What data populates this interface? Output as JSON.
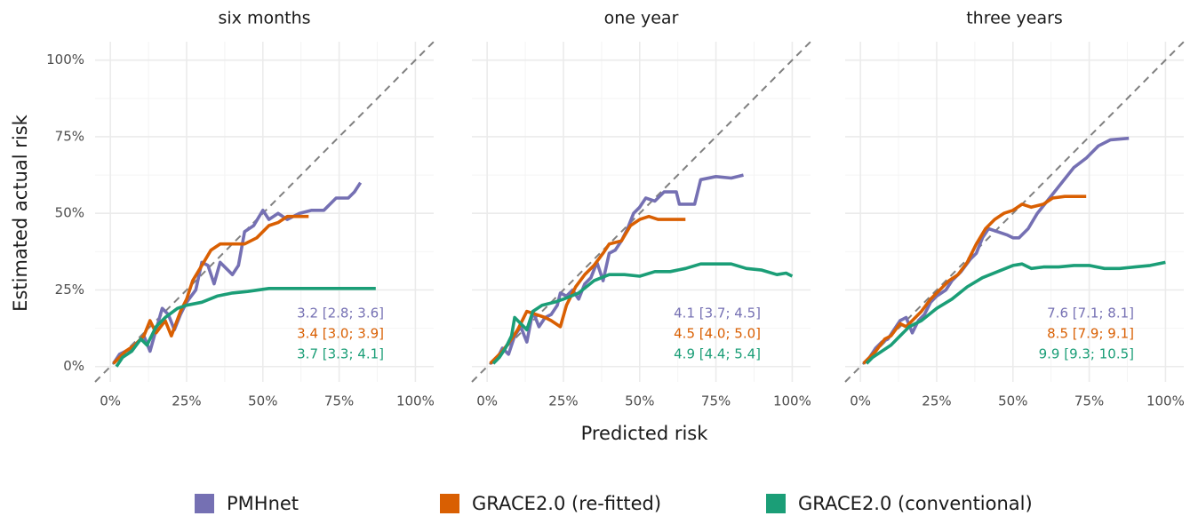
{
  "xlabel": "Predicted risk",
  "ylabel": "Estimated actual risk",
  "chart_data": [
    {
      "type": "line",
      "title": "six months",
      "xlim": [
        -5,
        106
      ],
      "ylim": [
        -5,
        106
      ],
      "xticks": [
        {
          "value": 0,
          "label": "0%"
        },
        {
          "value": 25,
          "label": "25%"
        },
        {
          "value": 50,
          "label": "50%"
        },
        {
          "value": 75,
          "label": "75%"
        },
        {
          "value": 100,
          "label": "100%"
        }
      ],
      "yticks": [
        {
          "value": 0,
          "label": "0%"
        },
        {
          "value": 25,
          "label": "25%"
        },
        {
          "value": 50,
          "label": "50%"
        },
        {
          "value": 75,
          "label": "75%"
        },
        {
          "value": 100,
          "label": "100%"
        }
      ],
      "grid": true,
      "series": [
        {
          "name": "PMHnet",
          "color": "#7570b3",
          "annotation": "3.2 [2.8; 3.6]",
          "x": [
            1,
            3,
            5,
            7,
            9,
            11,
            13,
            15,
            17,
            19,
            21,
            23,
            25,
            28,
            30,
            32,
            34,
            36,
            38,
            40,
            42,
            44,
            47,
            50,
            52,
            55,
            58,
            62,
            66,
            70,
            74,
            78,
            80,
            82
          ],
          "values": [
            1,
            4,
            5,
            6,
            8,
            10,
            5,
            12,
            19,
            17,
            12,
            17,
            21,
            25,
            34,
            33,
            27,
            34,
            32,
            30,
            33,
            44,
            46,
            51,
            48,
            50,
            48,
            50,
            51,
            51,
            55,
            55,
            57,
            60
          ]
        },
        {
          "name": "GRACE2.0 (re-fitted)",
          "color": "#d95f02",
          "annotation": "3.4 [3.0; 3.9]",
          "x": [
            1,
            3,
            5,
            8,
            11,
            13,
            15,
            18,
            20,
            23,
            25,
            27,
            30,
            33,
            36,
            40,
            44,
            48,
            52,
            55,
            58,
            61,
            65
          ],
          "values": [
            1,
            3,
            5,
            7,
            10,
            15,
            11,
            15,
            10,
            18,
            22,
            28,
            33,
            38,
            40,
            40,
            40,
            42,
            46,
            47,
            49,
            49,
            49
          ]
        },
        {
          "name": "GRACE2.0 (conventional)",
          "color": "#1b9e77",
          "annotation": "3.7 [3.3; 4.1]",
          "x": [
            2,
            4,
            7,
            10,
            12,
            15,
            18,
            22,
            25,
            30,
            35,
            40,
            45,
            52,
            60,
            70,
            80,
            87
          ],
          "values": [
            0,
            3,
            5,
            9,
            7,
            13,
            16,
            19,
            20,
            21,
            23,
            24,
            24.5,
            25.5,
            25.5,
            25.5,
            25.5,
            25.5
          ]
        }
      ]
    },
    {
      "type": "line",
      "title": "one year",
      "xlim": [
        -5,
        106
      ],
      "ylim": [
        -5,
        106
      ],
      "xticks": [
        {
          "value": 0,
          "label": "0%"
        },
        {
          "value": 25,
          "label": "25%"
        },
        {
          "value": 50,
          "label": "50%"
        },
        {
          "value": 75,
          "label": "75%"
        },
        {
          "value": 100,
          "label": "100%"
        }
      ],
      "yticks": [
        0,
        25,
        50,
        75,
        100
      ],
      "grid": true,
      "series": [
        {
          "name": "PMHnet",
          "color": "#7570b3",
          "annotation": "4.1 [3.7; 4.5]",
          "x": [
            1,
            3,
            5,
            7,
            9,
            11,
            13,
            15,
            17,
            19,
            21,
            23,
            24,
            26,
            28,
            30,
            32,
            34,
            36,
            38,
            40,
            42,
            44,
            46,
            48,
            50,
            52,
            55,
            58,
            62,
            63,
            68,
            70,
            75,
            80,
            84
          ],
          "values": [
            1,
            2,
            6,
            4,
            10,
            13,
            8,
            18,
            13,
            16,
            17,
            20,
            24,
            23,
            25,
            22,
            27,
            29,
            34,
            28,
            37,
            38,
            41,
            45,
            50,
            52,
            55,
            54,
            57,
            57,
            53,
            53,
            61,
            62,
            61.5,
            62.5
          ]
        },
        {
          "name": "GRACE2.0 (re-fitted)",
          "color": "#d95f02",
          "annotation": "4.5 [4.0; 5.0]",
          "x": [
            1,
            3,
            5,
            8,
            10,
            13,
            16,
            19,
            21,
            24,
            26,
            29,
            32,
            35,
            38,
            40,
            44,
            47,
            50,
            53,
            56,
            60,
            65
          ],
          "values": [
            1,
            3,
            5,
            9,
            12,
            18,
            17,
            16,
            15,
            13,
            20,
            26,
            30,
            33,
            37,
            40,
            41,
            46,
            48,
            49,
            48,
            48,
            48
          ]
        },
        {
          "name": "GRACE2.0 (conventional)",
          "color": "#1b9e77",
          "annotation": "4.9 [4.4; 5.4]",
          "x": [
            2,
            4,
            6,
            8,
            9,
            11,
            13,
            15,
            18,
            22,
            25,
            30,
            35,
            40,
            45,
            50,
            55,
            60,
            65,
            70,
            80,
            85,
            90,
            95,
            98,
            100
          ],
          "values": [
            1,
            3,
            6,
            10,
            16,
            14,
            12,
            18,
            20,
            21,
            22,
            24,
            28,
            30,
            30,
            29.5,
            31,
            31,
            32,
            33.5,
            33.5,
            32,
            31.5,
            30,
            30.5,
            29.5
          ]
        }
      ]
    },
    {
      "type": "line",
      "title": "three years",
      "xlim": [
        -5,
        106
      ],
      "ylim": [
        -5,
        106
      ],
      "xticks": [
        {
          "value": 0,
          "label": "0%"
        },
        {
          "value": 25,
          "label": "25%"
        },
        {
          "value": 50,
          "label": "50%"
        },
        {
          "value": 75,
          "label": "75%"
        },
        {
          "value": 100,
          "label": "100%"
        }
      ],
      "yticks": [
        0,
        25,
        50,
        75,
        100
      ],
      "grid": true,
      "series": [
        {
          "name": "PMHnet",
          "color": "#7570b3",
          "annotation": "7.6 [7.1; 8.1]",
          "x": [
            1,
            3,
            5,
            7,
            9,
            11,
            13,
            15,
            17,
            19,
            21,
            23,
            25,
            28,
            30,
            33,
            36,
            38,
            40,
            42,
            45,
            48,
            50,
            52,
            55,
            58,
            62,
            66,
            70,
            74,
            78,
            82,
            88
          ],
          "values": [
            1,
            3,
            6,
            8,
            9,
            12,
            15,
            16,
            11,
            15,
            17,
            21,
            23,
            25,
            28,
            31,
            35,
            37,
            42,
            45,
            44,
            43,
            42,
            42,
            45,
            50,
            55,
            60,
            65,
            68,
            72,
            74,
            74.5
          ]
        },
        {
          "name": "GRACE2.0 (re-fitted)",
          "color": "#d95f02",
          "annotation": "8.5 [7.9; 9.1]",
          "x": [
            1,
            3,
            5,
            8,
            10,
            13,
            15,
            17,
            20,
            23,
            26,
            29,
            32,
            35,
            38,
            41,
            44,
            47,
            50,
            53,
            56,
            60,
            63,
            67,
            74
          ],
          "values": [
            1,
            3,
            5,
            9,
            10,
            14,
            13,
            15,
            18,
            22,
            25,
            28,
            30,
            34,
            40,
            45,
            48,
            50,
            51,
            53,
            52,
            53,
            55,
            55.5,
            55.5
          ]
        },
        {
          "name": "GRACE2.0 (conventional)",
          "color": "#1b9e77",
          "annotation": "9.9 [9.3; 10.5]",
          "x": [
            2,
            4,
            7,
            10,
            13,
            16,
            20,
            25,
            30,
            35,
            40,
            45,
            50,
            53,
            56,
            60,
            65,
            70,
            75,
            80,
            85,
            90,
            95,
            100
          ],
          "values": [
            1,
            3,
            5,
            7,
            10,
            13,
            15,
            19,
            22,
            26,
            29,
            31,
            33,
            33.5,
            32,
            32.5,
            32.5,
            33,
            33,
            32,
            32,
            32.5,
            33,
            34
          ]
        }
      ]
    }
  ]
}
